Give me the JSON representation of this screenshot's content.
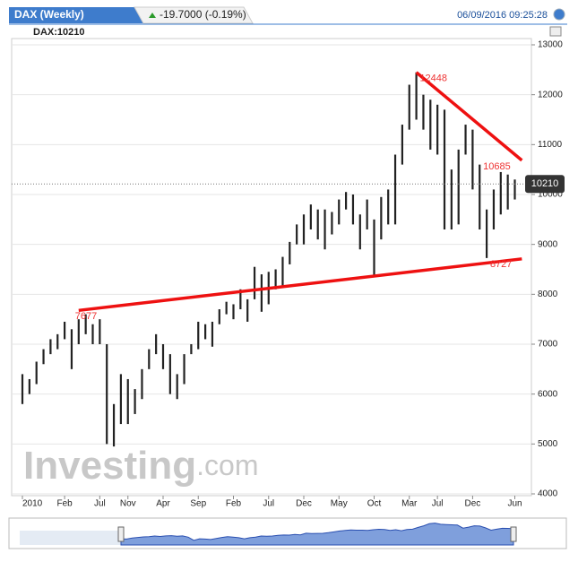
{
  "chart_data": {
    "type": "range-bar",
    "title": "DAX (Weekly)",
    "change": "-19.7000 (-0.19%)",
    "timestamp": "06/09/2016 09:25:28",
    "symbol_label": "DAX:10210",
    "last": 10210,
    "watermark": "Investing",
    "watermark_suffix": ".com",
    "color": "#222222",
    "categories": [
      "2010",
      null,
      null,
      null,
      null,
      null,
      "Feb",
      null,
      null,
      null,
      null,
      "Jul",
      null,
      null,
      null,
      "Nov",
      null,
      null,
      null,
      null,
      "Apr",
      null,
      null,
      null,
      null,
      "Sep",
      null,
      null,
      null,
      null,
      "Feb",
      null,
      null,
      null,
      null,
      "Jul",
      null,
      null,
      null,
      null,
      "Dec",
      null,
      null,
      null,
      null,
      "May",
      null,
      null,
      null,
      null,
      "Oct",
      null,
      null,
      null,
      null,
      "Mar",
      null,
      null,
      null,
      "Jul",
      null,
      null,
      null,
      null,
      "Dec",
      null,
      null,
      null,
      null,
      null,
      "Jun"
    ],
    "series": [
      {
        "name": "High",
        "values": [
          6400,
          6300,
          6650,
          6900,
          7100,
          7200,
          7450,
          7300,
          7500,
          7600,
          7400,
          7500,
          7000,
          5800,
          6400,
          6300,
          6100,
          6500,
          6900,
          7200,
          7000,
          6800,
          6400,
          6800,
          7000,
          7450,
          7400,
          7450,
          7700,
          7850,
          7800,
          8100,
          7900,
          8550,
          8400,
          8450,
          8500,
          8750,
          9050,
          9400,
          9600,
          9800,
          9700,
          9700,
          9650,
          9900,
          10050,
          10000,
          9600,
          9900,
          9500,
          9950,
          10100,
          10800,
          11400,
          12200,
          12448,
          12000,
          11900,
          11800,
          11700,
          10500,
          10900,
          11400,
          11300,
          10600,
          9700,
          10100,
          10450,
          10400,
          10300
        ]
      },
      {
        "name": "Low",
        "values": [
          5800,
          6000,
          6200,
          6600,
          6800,
          6900,
          7100,
          6500,
          7000,
          7200,
          7000,
          7000,
          5000,
          4950,
          5400,
          5400,
          5600,
          5900,
          6500,
          6800,
          6500,
          6000,
          5900,
          6200,
          6800,
          6900,
          7100,
          6950,
          7400,
          7600,
          7500,
          7700,
          7450,
          7900,
          7650,
          7800,
          8100,
          8150,
          8600,
          9000,
          9000,
          9300,
          9100,
          8900,
          9200,
          9400,
          9700,
          9400,
          8900,
          9300,
          8355,
          9100,
          9400,
          9400,
          10600,
          11300,
          11500,
          11300,
          10900,
          10800,
          9300,
          9300,
          9400,
          10800,
          10100,
          9300,
          8727,
          9300,
          9600,
          9700,
          9900
        ]
      }
    ],
    "trendlines": [
      {
        "color": "#ee1111",
        "from": {
          "index": 8,
          "value": 7677
        },
        "to": {
          "index": 71,
          "value": 8710
        }
      },
      {
        "color": "#ee1111",
        "from": {
          "index": 56,
          "value": 12448
        },
        "to": {
          "index": 71,
          "value": 10685
        }
      }
    ],
    "annotations": [
      {
        "text": "7677",
        "index": 8,
        "value": 7677
      },
      {
        "text": "12448",
        "index": 57,
        "value": 12448
      },
      {
        "text": "10685",
        "index": 66,
        "value": 10685
      },
      {
        "text": "8727",
        "index": 67,
        "value": 8727
      }
    ],
    "ylim": [
      4000,
      13000
    ],
    "yticks": [
      4000,
      5000,
      6000,
      7000,
      8000,
      9000,
      10000,
      11000,
      12000,
      13000
    ],
    "grid": true
  }
}
